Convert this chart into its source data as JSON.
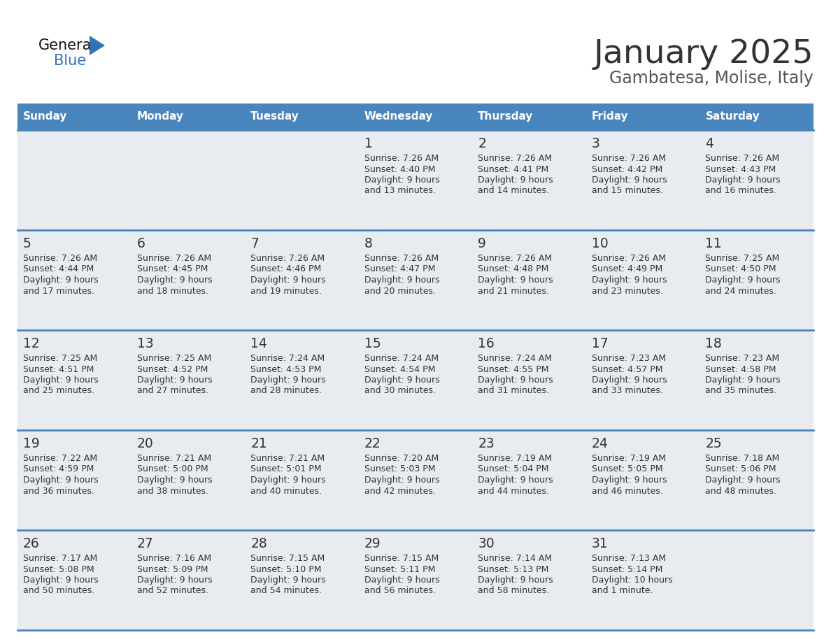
{
  "title": "January 2025",
  "subtitle": "Gambatesa, Molise, Italy",
  "days_of_week": [
    "Sunday",
    "Monday",
    "Tuesday",
    "Wednesday",
    "Thursday",
    "Friday",
    "Saturday"
  ],
  "header_bg": "#4a86be",
  "header_text": "#ffffff",
  "row_bg": "#e8ecf0",
  "cell_text": "#333333",
  "divider_color": "#4a86be",
  "title_color": "#333333",
  "subtitle_color": "#555555",
  "calendar_data": [
    {
      "day": 1,
      "col": 3,
      "row": 0,
      "sunrise": "7:26 AM",
      "sunset": "4:40 PM",
      "daylight": "9 hours and 13 minutes."
    },
    {
      "day": 2,
      "col": 4,
      "row": 0,
      "sunrise": "7:26 AM",
      "sunset": "4:41 PM",
      "daylight": "9 hours and 14 minutes."
    },
    {
      "day": 3,
      "col": 5,
      "row": 0,
      "sunrise": "7:26 AM",
      "sunset": "4:42 PM",
      "daylight": "9 hours and 15 minutes."
    },
    {
      "day": 4,
      "col": 6,
      "row": 0,
      "sunrise": "7:26 AM",
      "sunset": "4:43 PM",
      "daylight": "9 hours and 16 minutes."
    },
    {
      "day": 5,
      "col": 0,
      "row": 1,
      "sunrise": "7:26 AM",
      "sunset": "4:44 PM",
      "daylight": "9 hours and 17 minutes."
    },
    {
      "day": 6,
      "col": 1,
      "row": 1,
      "sunrise": "7:26 AM",
      "sunset": "4:45 PM",
      "daylight": "9 hours and 18 minutes."
    },
    {
      "day": 7,
      "col": 2,
      "row": 1,
      "sunrise": "7:26 AM",
      "sunset": "4:46 PM",
      "daylight": "9 hours and 19 minutes."
    },
    {
      "day": 8,
      "col": 3,
      "row": 1,
      "sunrise": "7:26 AM",
      "sunset": "4:47 PM",
      "daylight": "9 hours and 20 minutes."
    },
    {
      "day": 9,
      "col": 4,
      "row": 1,
      "sunrise": "7:26 AM",
      "sunset": "4:48 PM",
      "daylight": "9 hours and 21 minutes."
    },
    {
      "day": 10,
      "col": 5,
      "row": 1,
      "sunrise": "7:26 AM",
      "sunset": "4:49 PM",
      "daylight": "9 hours and 23 minutes."
    },
    {
      "day": 11,
      "col": 6,
      "row": 1,
      "sunrise": "7:25 AM",
      "sunset": "4:50 PM",
      "daylight": "9 hours and 24 minutes."
    },
    {
      "day": 12,
      "col": 0,
      "row": 2,
      "sunrise": "7:25 AM",
      "sunset": "4:51 PM",
      "daylight": "9 hours and 25 minutes."
    },
    {
      "day": 13,
      "col": 1,
      "row": 2,
      "sunrise": "7:25 AM",
      "sunset": "4:52 PM",
      "daylight": "9 hours and 27 minutes."
    },
    {
      "day": 14,
      "col": 2,
      "row": 2,
      "sunrise": "7:24 AM",
      "sunset": "4:53 PM",
      "daylight": "9 hours and 28 minutes."
    },
    {
      "day": 15,
      "col": 3,
      "row": 2,
      "sunrise": "7:24 AM",
      "sunset": "4:54 PM",
      "daylight": "9 hours and 30 minutes."
    },
    {
      "day": 16,
      "col": 4,
      "row": 2,
      "sunrise": "7:24 AM",
      "sunset": "4:55 PM",
      "daylight": "9 hours and 31 minutes."
    },
    {
      "day": 17,
      "col": 5,
      "row": 2,
      "sunrise": "7:23 AM",
      "sunset": "4:57 PM",
      "daylight": "9 hours and 33 minutes."
    },
    {
      "day": 18,
      "col": 6,
      "row": 2,
      "sunrise": "7:23 AM",
      "sunset": "4:58 PM",
      "daylight": "9 hours and 35 minutes."
    },
    {
      "day": 19,
      "col": 0,
      "row": 3,
      "sunrise": "7:22 AM",
      "sunset": "4:59 PM",
      "daylight": "9 hours and 36 minutes."
    },
    {
      "day": 20,
      "col": 1,
      "row": 3,
      "sunrise": "7:21 AM",
      "sunset": "5:00 PM",
      "daylight": "9 hours and 38 minutes."
    },
    {
      "day": 21,
      "col": 2,
      "row": 3,
      "sunrise": "7:21 AM",
      "sunset": "5:01 PM",
      "daylight": "9 hours and 40 minutes."
    },
    {
      "day": 22,
      "col": 3,
      "row": 3,
      "sunrise": "7:20 AM",
      "sunset": "5:03 PM",
      "daylight": "9 hours and 42 minutes."
    },
    {
      "day": 23,
      "col": 4,
      "row": 3,
      "sunrise": "7:19 AM",
      "sunset": "5:04 PM",
      "daylight": "9 hours and 44 minutes."
    },
    {
      "day": 24,
      "col": 5,
      "row": 3,
      "sunrise": "7:19 AM",
      "sunset": "5:05 PM",
      "daylight": "9 hours and 46 minutes."
    },
    {
      "day": 25,
      "col": 6,
      "row": 3,
      "sunrise": "7:18 AM",
      "sunset": "5:06 PM",
      "daylight": "9 hours and 48 minutes."
    },
    {
      "day": 26,
      "col": 0,
      "row": 4,
      "sunrise": "7:17 AM",
      "sunset": "5:08 PM",
      "daylight": "9 hours and 50 minutes."
    },
    {
      "day": 27,
      "col": 1,
      "row": 4,
      "sunrise": "7:16 AM",
      "sunset": "5:09 PM",
      "daylight": "9 hours and 52 minutes."
    },
    {
      "day": 28,
      "col": 2,
      "row": 4,
      "sunrise": "7:15 AM",
      "sunset": "5:10 PM",
      "daylight": "9 hours and 54 minutes."
    },
    {
      "day": 29,
      "col": 3,
      "row": 4,
      "sunrise": "7:15 AM",
      "sunset": "5:11 PM",
      "daylight": "9 hours and 56 minutes."
    },
    {
      "day": 30,
      "col": 4,
      "row": 4,
      "sunrise": "7:14 AM",
      "sunset": "5:13 PM",
      "daylight": "9 hours and 58 minutes."
    },
    {
      "day": 31,
      "col": 5,
      "row": 4,
      "sunrise": "7:13 AM",
      "sunset": "5:14 PM",
      "daylight": "10 hours and 1 minute."
    }
  ]
}
